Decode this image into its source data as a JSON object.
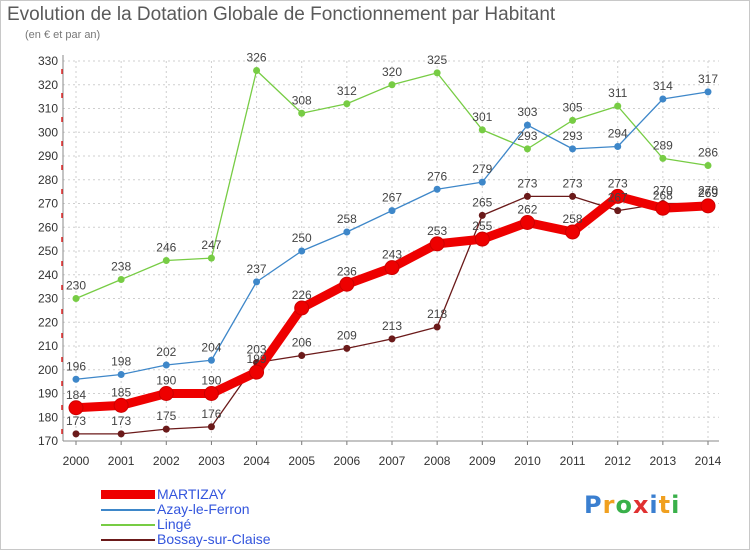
{
  "chart_data": {
    "type": "line",
    "title": "Evolution de la Dotation Globale de Fonctionnement par Habitant",
    "subtitle": "(en € et par an)",
    "x": [
      "2000",
      "2001",
      "2002",
      "2003",
      "2004",
      "2005",
      "2006",
      "2007",
      "2008",
      "2009",
      "2010",
      "2011",
      "2012",
      "2013",
      "2014"
    ],
    "ylim": [
      170,
      330
    ],
    "yticks": [
      170,
      180,
      190,
      200,
      210,
      220,
      230,
      240,
      250,
      260,
      270,
      280,
      290,
      300,
      310,
      320,
      330
    ],
    "series": [
      {
        "name": "MARTIZAY",
        "color": "#ee0000",
        "values": [
          184,
          185,
          190,
          190,
          199,
          226,
          236,
          243,
          253,
          255,
          262,
          258,
          273,
          268,
          269
        ],
        "labels": [
          "184",
          "185",
          "190",
          "190",
          "",
          "226",
          "236",
          "243",
          "253",
          "255",
          "262",
          "258",
          "273",
          "",
          "269"
        ]
      },
      {
        "name": "Azay-le-Ferron",
        "color": "#3e87c9",
        "values": [
          196,
          198,
          202,
          204,
          237,
          250,
          258,
          267,
          276,
          279,
          303,
          293,
          294,
          314,
          317
        ],
        "labels": [
          "196",
          "198",
          "202",
          "204",
          "237",
          "250",
          "258",
          "267",
          "276",
          "279",
          "303",
          "293",
          "294",
          "314",
          "317"
        ]
      },
      {
        "name": "Lingé",
        "color": "#77cc44",
        "values": [
          230,
          238,
          246,
          247,
          326,
          308,
          312,
          320,
          325,
          301,
          293,
          305,
          311,
          289,
          286
        ],
        "labels": [
          "230",
          "238",
          "246",
          "247",
          "326",
          "308",
          "312",
          "320",
          "325",
          "301",
          "293",
          "305",
          "311",
          "289",
          "286"
        ]
      },
      {
        "name": "Bossay-sur-Claise",
        "color": "#6b1a1a",
        "values": [
          173,
          173,
          175,
          176,
          203,
          206,
          209,
          213,
          218,
          265,
          273,
          273,
          267,
          270,
          270
        ],
        "labels": [
          "173",
          "173",
          "175",
          "176",
          "203",
          "206",
          "209",
          "213",
          "218",
          "265",
          "273",
          "273",
          "267",
          "270",
          "270"
        ]
      }
    ],
    "legend": [
      {
        "name": "MARTIZAY",
        "color": "#ee0000"
      },
      {
        "name": "Azay-le-Ferron",
        "color": "#3e87c9"
      },
      {
        "name": "Lingé",
        "color": "#77cc44"
      },
      {
        "name": "Bossay-sur-Claise",
        "color": "#6b1a1a"
      }
    ],
    "extra_labels": [
      "199",
      "268",
      "269"
    ]
  },
  "logo": {
    "letters": [
      "P",
      "r",
      "o",
      "x",
      "i",
      "t",
      "i"
    ],
    "colors": [
      "#3a7fd0",
      "#f0a020",
      "#39b04a",
      "#e03030",
      "#3a7fd0",
      "#f0a020",
      "#39b04a"
    ]
  }
}
